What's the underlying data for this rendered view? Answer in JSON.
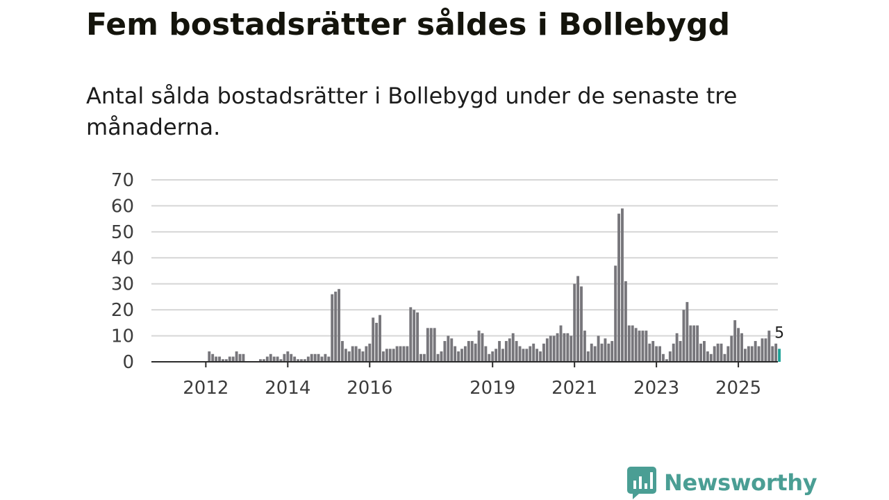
{
  "title": "Fem bostadsrätter såldes i Bollebygd",
  "subtitle": "Antal sålda bostadsrätter i Bollebygd under de senaste tre månaderna.",
  "brand": {
    "name": "Newsworthy",
    "color": "#4a9e94"
  },
  "colors": {
    "bar": "#77767b",
    "highlight": "#1fa398",
    "grid": "#d6d6d6",
    "axis": "#2a2a2a"
  },
  "chart_data": {
    "type": "bar",
    "title": "",
    "xlabel": "",
    "ylabel": "",
    "ylim": [
      0,
      70
    ],
    "yticks": [
      0,
      10,
      20,
      30,
      40,
      50,
      60,
      70
    ],
    "x_tick_labels": [
      "2012",
      "2014",
      "2016",
      "2019",
      "2021",
      "2023",
      "2025"
    ],
    "start": "2011-06",
    "series": [
      {
        "name": "Antal sålda bostadsrätter",
        "values": [
          0,
          0,
          0,
          0,
          0,
          0,
          0,
          0,
          4,
          3,
          2,
          2,
          1,
          1,
          2,
          2,
          4,
          3,
          3,
          0,
          0,
          0,
          0,
          1,
          1,
          2,
          3,
          2,
          2,
          1,
          3,
          4,
          3,
          2,
          1,
          1,
          1,
          2,
          3,
          3,
          3,
          2,
          3,
          2,
          26,
          27,
          28,
          8,
          5,
          4,
          6,
          6,
          5,
          4,
          6,
          7,
          17,
          15,
          18,
          4,
          5,
          5,
          5,
          6,
          6,
          6,
          6,
          21,
          20,
          19,
          3,
          3,
          13,
          13,
          13,
          3,
          4,
          8,
          10,
          9,
          6,
          4,
          5,
          6,
          8,
          8,
          7,
          12,
          11,
          6,
          3,
          4,
          5,
          8,
          5,
          8,
          9,
          11,
          8,
          6,
          5,
          5,
          6,
          7,
          5,
          4,
          7,
          9,
          10,
          10,
          11,
          14,
          11,
          11,
          10,
          30,
          33,
          29,
          12,
          4,
          7,
          6,
          10,
          7,
          9,
          7,
          8,
          37,
          57,
          59,
          31,
          14,
          14,
          13,
          12,
          12,
          12,
          7,
          8,
          6,
          6,
          3,
          1,
          4,
          7,
          11,
          8,
          20,
          23,
          14,
          14,
          14,
          7,
          8,
          4,
          3,
          6,
          7,
          7,
          3,
          6,
          10,
          16,
          13,
          11,
          5,
          6,
          6,
          8,
          6,
          9,
          9,
          12,
          6,
          7,
          5
        ]
      }
    ],
    "highlight_last": 1,
    "highlight_label": "5"
  }
}
